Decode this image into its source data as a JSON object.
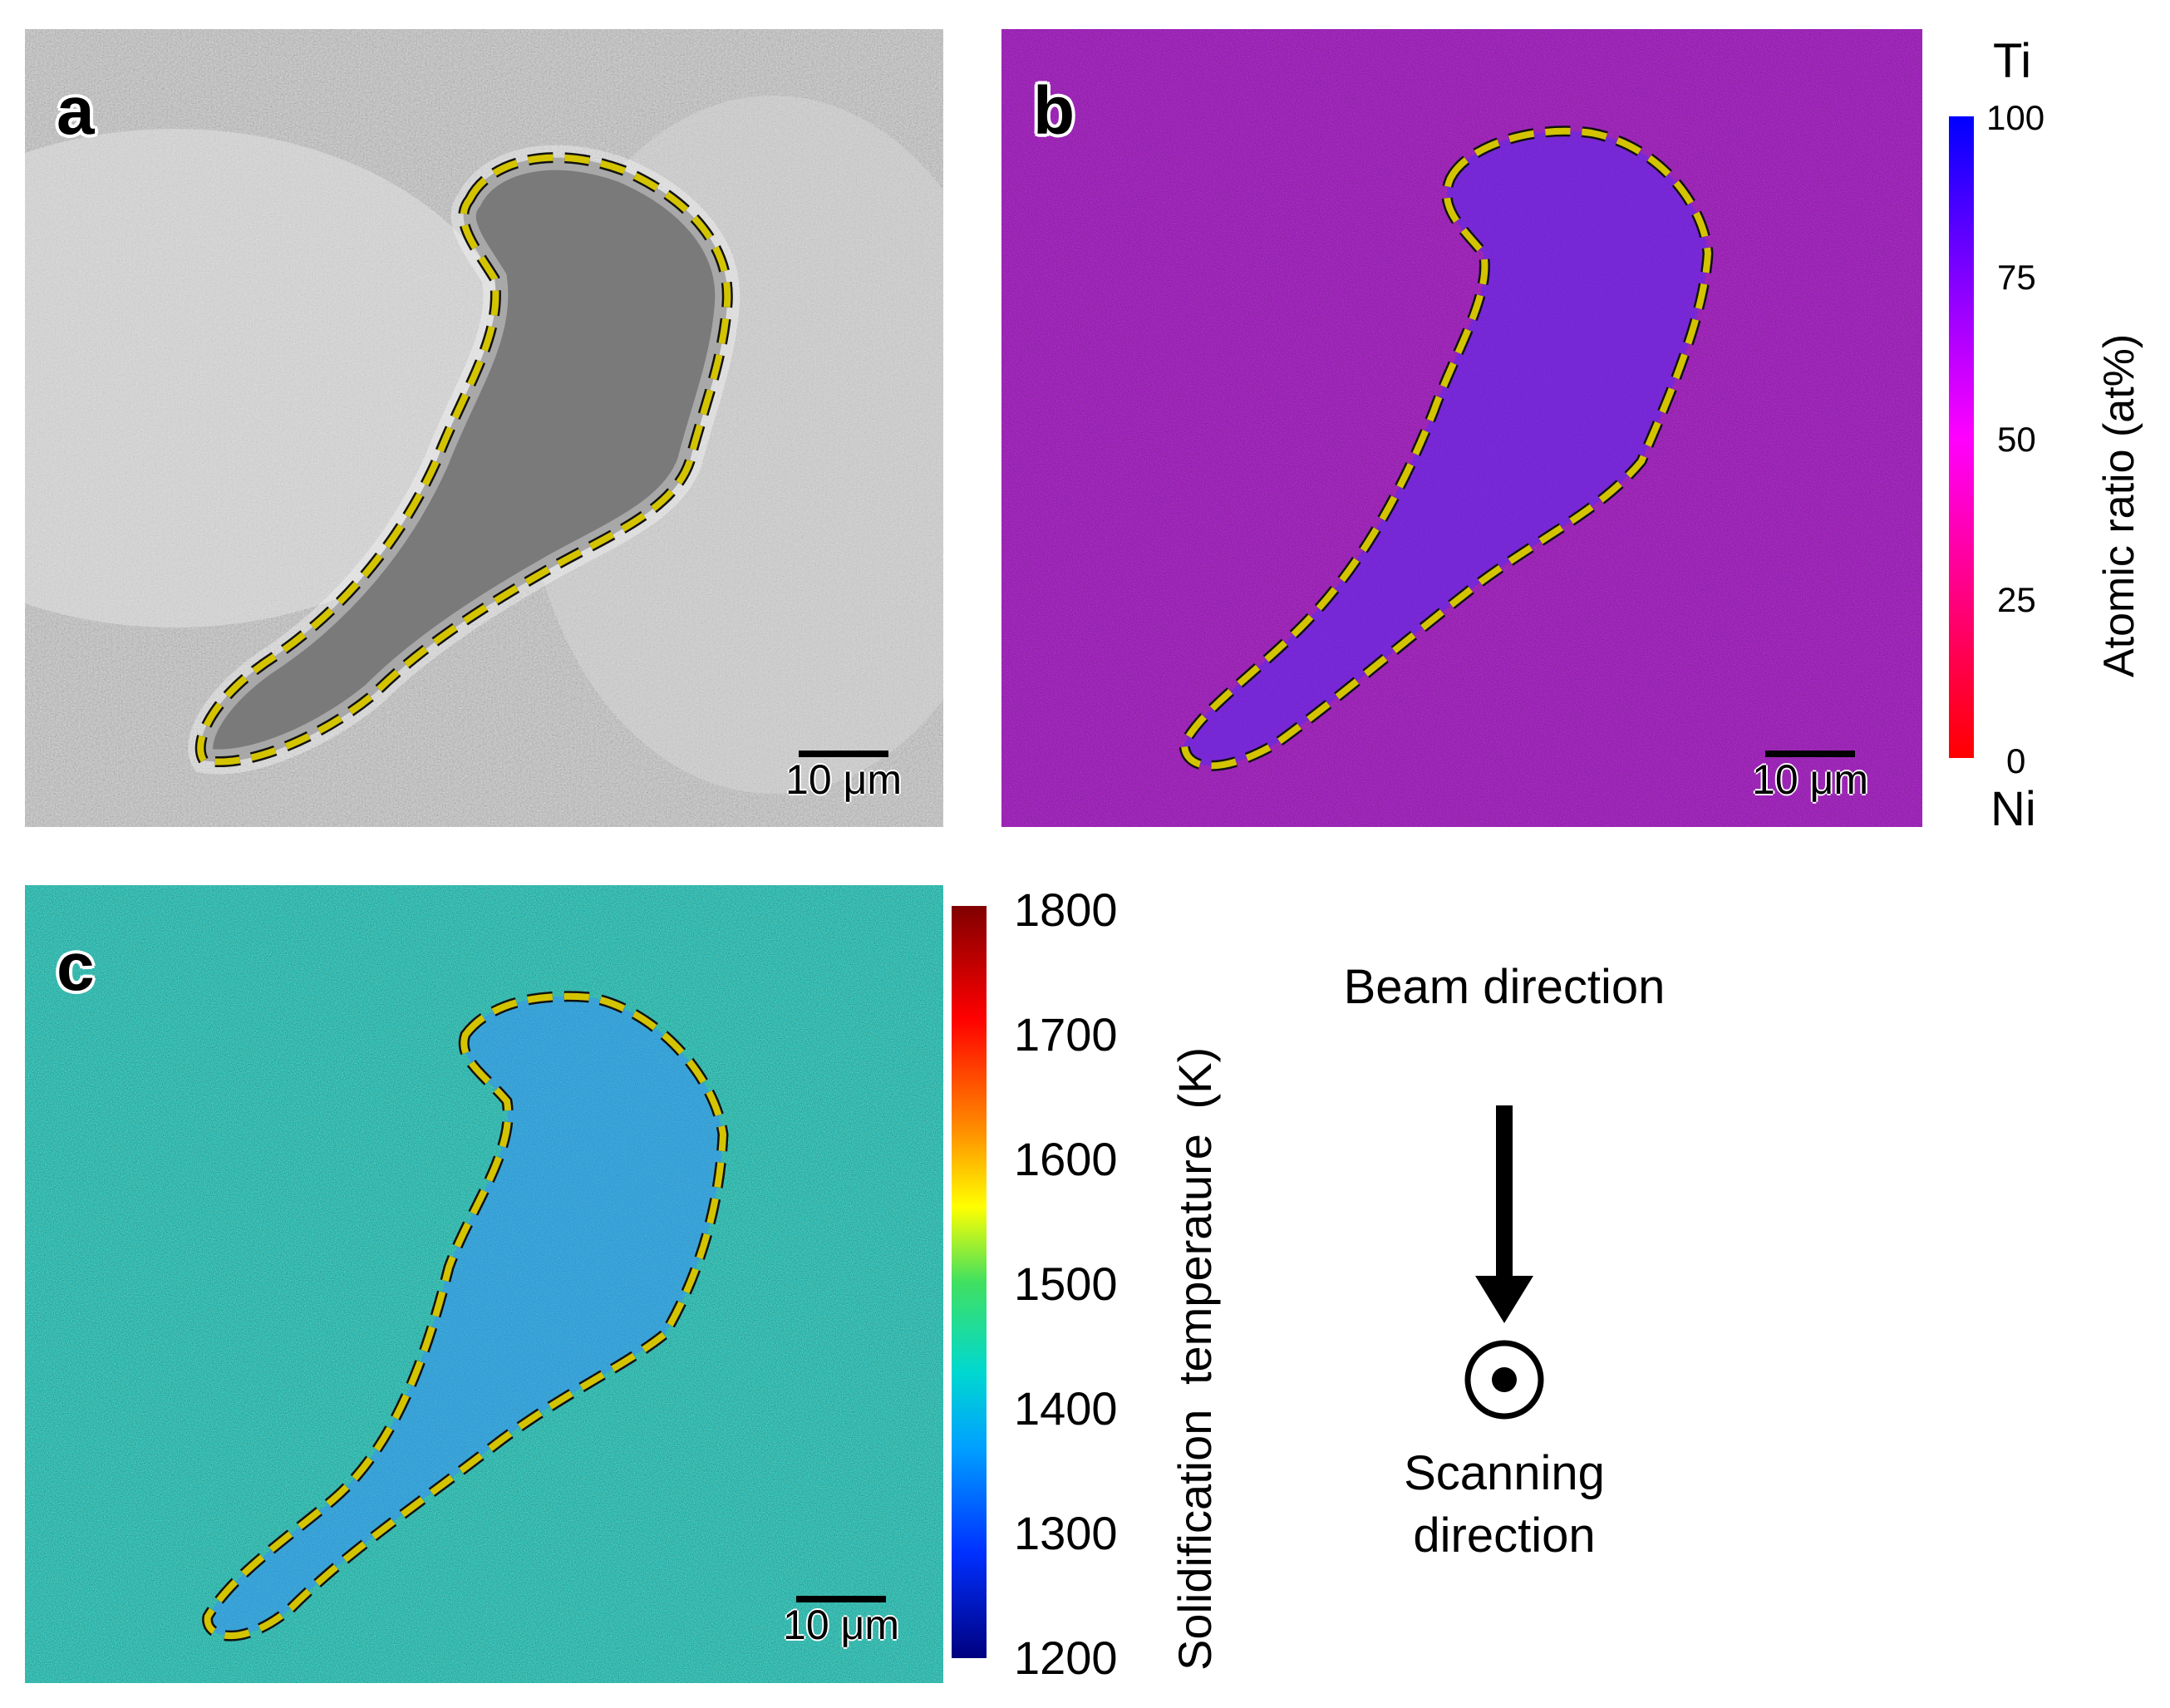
{
  "panels": {
    "a": {
      "label": "a",
      "scale_bar": "10 μm"
    },
    "b": {
      "label": "b",
      "scale_bar": "10 μm"
    },
    "c": {
      "label": "c",
      "scale_bar": "10 μm"
    }
  },
  "colorbar_ratio": {
    "title": "Atomic ratio (at%)",
    "top_label": "Ti",
    "bottom_label": "Ni",
    "ticks": [
      "100",
      "75",
      "50",
      "25",
      "0"
    ],
    "colors": [
      "#0000ff",
      "#8000ff",
      "#ff00ff",
      "#ff0080",
      "#ff0000"
    ]
  },
  "colorbar_temp": {
    "title": "Solidification temperature (K)",
    "ticks": [
      "1800",
      "1700",
      "1600",
      "1500",
      "1400",
      "1300",
      "1200"
    ],
    "colors": [
      "#800000",
      "#ff0000",
      "#ff8000",
      "#ffff00",
      "#00e080",
      "#00c0ff",
      "#0040ff",
      "#000080"
    ]
  },
  "directions": {
    "beam": "Beam direction",
    "scanning": "Scanning direction"
  },
  "outline_color": "#d4c400",
  "icons": [
    "arrow-down-icon",
    "out-of-plane-dot-icon"
  ]
}
